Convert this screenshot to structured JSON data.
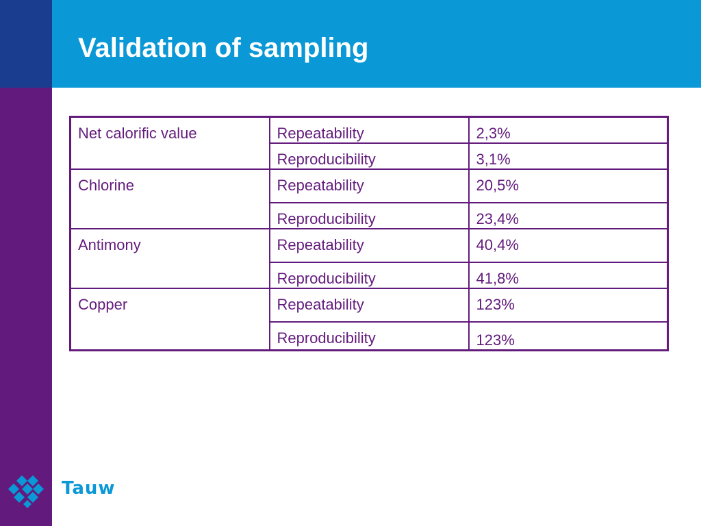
{
  "slide": {
    "title": "Validation of sampling"
  },
  "table": {
    "rows": [
      {
        "parameter": "Net calorific value",
        "measures": [
          {
            "type": "Repeatability",
            "value": "2,3%"
          },
          {
            "type": "Reproducibility",
            "value": "3,1%"
          }
        ]
      },
      {
        "parameter": "Chlorine",
        "measures": [
          {
            "type": "Repeatability",
            "value": "20,5%"
          },
          {
            "type": "Reproducibility",
            "value": "23,4%"
          }
        ]
      },
      {
        "parameter": "Antimony",
        "measures": [
          {
            "type": "Repeatability",
            "value": "40,4%"
          },
          {
            "type": "Reproducibility",
            "value": "41,8%"
          }
        ]
      },
      {
        "parameter": "Copper",
        "measures": [
          {
            "type": "Repeatability",
            "value": "123%"
          },
          {
            "type": "Reproducibility",
            "value": "123%"
          }
        ]
      }
    ]
  },
  "logo": {
    "text": "Tauw",
    "icon": "tauw-logo-icon"
  },
  "colors": {
    "header_blue": "#0a98d6",
    "corner_navy": "#1a3d8f",
    "sidebar_purple": "#621a7c",
    "table_border": "#621a7c",
    "text_purple": "#621a7c"
  }
}
